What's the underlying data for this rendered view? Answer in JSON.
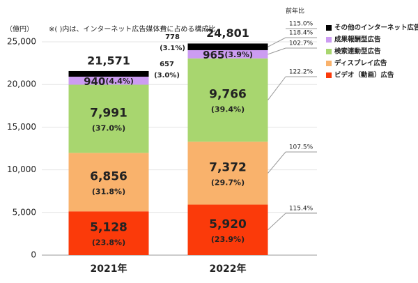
{
  "chart_data": {
    "type": "stacked_bar",
    "y_unit_label": "（億円）",
    "note": "※( )内は、インターネット広告媒体費に占める構成比",
    "yoy_header": "前年比",
    "categories": [
      "2021年",
      "2022年"
    ],
    "ylim": [
      0,
      25000
    ],
    "yticks": [
      0,
      {
        "value": 5000,
        "label": "5,000"
      },
      {
        "value": 10000,
        "label": "10,000"
      },
      {
        "value": 15000,
        "label": "15,000"
      },
      {
        "value": 20000,
        "label": "20,000"
      },
      {
        "value": 25000,
        "label": "25,000"
      }
    ],
    "grid": true,
    "legend": "right",
    "totals": [
      21571,
      24801
    ],
    "total_labels": [
      "21,571",
      "24,801"
    ],
    "total_yoy_label": "115.0%",
    "series": [
      {
        "name": "その他のインターネット広告",
        "color": "#000000",
        "values": [
          657,
          778
        ],
        "value_labels": [
          "657",
          "778"
        ],
        "share_labels": [
          "(3.0%)",
          "(3.1%)"
        ],
        "yoy_label": "118.4%"
      },
      {
        "name": "成果報酬型広告",
        "color": "#cc9cf2",
        "values": [
          940,
          965
        ],
        "share_labels": [
          "(4.4%)",
          "(3.9%)"
        ],
        "yoy_label": "102.7%"
      },
      {
        "name": "検索連動型広告",
        "color": "#a8d66f",
        "values": [
          7991,
          9766
        ],
        "value_labels": [
          "7,991",
          "9,766"
        ],
        "share_labels": [
          "(37.0%)",
          "(39.4%)"
        ],
        "yoy_label": "122.2%"
      },
      {
        "name": "ディスプレイ広告",
        "color": "#f9b26c",
        "values": [
          6856,
          7372
        ],
        "value_labels": [
          "6,856",
          "7,372"
        ],
        "share_labels": [
          "(31.8%)",
          "(29.7%)"
        ],
        "yoy_label": "107.5%"
      },
      {
        "name": "ビデオ（動画）広告",
        "color": "#fb3a0a",
        "values": [
          5128,
          5920
        ],
        "value_labels": [
          "5,128",
          "5,920"
        ],
        "share_labels": [
          "(23.8%)",
          "(23.9%)"
        ],
        "yoy_label": "115.4%"
      }
    ]
  }
}
